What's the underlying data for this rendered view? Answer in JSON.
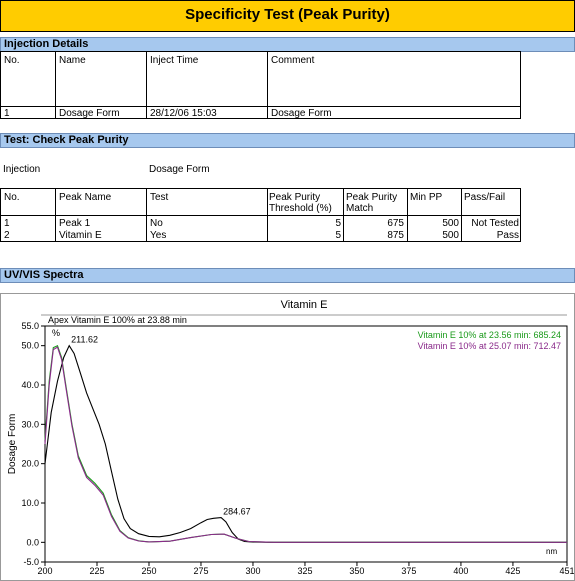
{
  "title": "Specificity Test (Peak Purity)",
  "injection_details": {
    "section_title": "Injection Details",
    "headers": [
      "No.",
      "Name",
      "Inject Time",
      "Comment"
    ],
    "row": {
      "no": "1",
      "name": "Dosage Form",
      "inject_time": "28/12/06 15:03",
      "comment": "Dosage Form"
    }
  },
  "peak_purity": {
    "section_title": "Test: Check Peak Purity",
    "injection_label": "Injection",
    "injection_value": "Dosage Form",
    "headers": {
      "no": "No.",
      "peak_name": "Peak Name",
      "test": "Test",
      "threshold_line1": "Peak Purity",
      "threshold_line2": "Threshold (%)",
      "match_line1": "Peak Purity",
      "match_line2": "Match",
      "min_pp": "Min  PP",
      "pass_fail": "Pass/Fail"
    },
    "rows": [
      {
        "no": "1",
        "peak_name": "Peak 1",
        "test": "No",
        "threshold": "5",
        "match": "675",
        "min_pp": "500",
        "result": "Not Tested"
      },
      {
        "no": "2",
        "peak_name": "Vitamin E",
        "test": "Yes",
        "threshold": "5",
        "match": "875",
        "min_pp": "500",
        "result": "Pass"
      }
    ]
  },
  "spectra": {
    "section_title": "UV/VIS Spectra",
    "chart_title": "Vitamin E",
    "apex_label": "Apex Vitamin E 100% at 23.88 min",
    "percent_label": "%",
    "x_unit": "nm"
  },
  "chart_data": {
    "type": "line",
    "title": "Vitamin E",
    "xlabel": "nm",
    "ylabel": "Dosage Form",
    "xlim": [
      200,
      451
    ],
    "ylim": [
      -5,
      55
    ],
    "x_ticks": [
      "200",
      "225",
      "250",
      "275",
      "300",
      "325",
      "350",
      "375",
      "400",
      "425",
      "451"
    ],
    "y_ticks": [
      "-5.0",
      "0.0",
      "10.0",
      "20.0",
      "30.0",
      "40.0",
      "50.0",
      "55.0"
    ],
    "grid": false,
    "legend_position": "top-right",
    "annotations": [
      {
        "text": "211.62",
        "x": 211.62,
        "y": 50.0
      },
      {
        "text": "284.67",
        "x": 284.67,
        "y": 6.3
      }
    ],
    "series": [
      {
        "name": "Apex Vitamin E 100% at 23.88 min",
        "color": "#000000",
        "x": [
          200,
          203,
          206,
          209,
          211.62,
          214,
          217,
          220,
          223,
          226,
          229,
          232,
          235,
          238,
          241,
          245,
          250,
          255,
          260,
          265,
          270,
          275,
          278,
          281,
          284.67,
          287,
          290,
          293,
          296,
          300,
          310,
          330,
          360,
          400,
          451
        ],
        "y": [
          20,
          33,
          41,
          47,
          50,
          48,
          43,
          38,
          34,
          30,
          25,
          18,
          11,
          6,
          3.5,
          2.2,
          1.5,
          1.4,
          1.8,
          2.5,
          3.5,
          5,
          5.8,
          6.1,
          6.3,
          5.2,
          2.5,
          0.8,
          0.2,
          0.05,
          0,
          0,
          0,
          0,
          0
        ]
      },
      {
        "name": "Vitamin E 10% at 23.56 min: 685.24",
        "color": "#1a9a1a",
        "x": [
          200,
          202,
          204,
          206,
          208,
          210,
          213,
          216,
          220,
          224,
          228,
          232,
          236,
          240,
          245,
          250,
          260,
          270,
          280,
          286,
          292,
          298,
          310,
          340,
          400,
          451
        ],
        "y": [
          26,
          41,
          49.5,
          50,
          47,
          40,
          30,
          22,
          17,
          15,
          12.5,
          7,
          3,
          1.2,
          0.4,
          0.1,
          0.3,
          1.2,
          2,
          2.1,
          1,
          0.2,
          0,
          0,
          0,
          0
        ]
      },
      {
        "name": "Vitamin E 10% at 25.07 min: 712.47",
        "color": "#8a2a8a",
        "x": [
          200,
          202,
          204,
          206,
          208,
          210,
          213,
          216,
          220,
          224,
          228,
          232,
          236,
          240,
          245,
          250,
          260,
          270,
          280,
          286,
          292,
          298,
          310,
          340,
          400,
          451
        ],
        "y": [
          25,
          40,
          49,
          49.6,
          46.5,
          39.5,
          29.5,
          21.5,
          16.5,
          14.5,
          12,
          6.6,
          2.8,
          1.1,
          0.35,
          0.1,
          0.3,
          1.2,
          2,
          2.1,
          1,
          0.2,
          0,
          0,
          0,
          0
        ]
      }
    ]
  }
}
